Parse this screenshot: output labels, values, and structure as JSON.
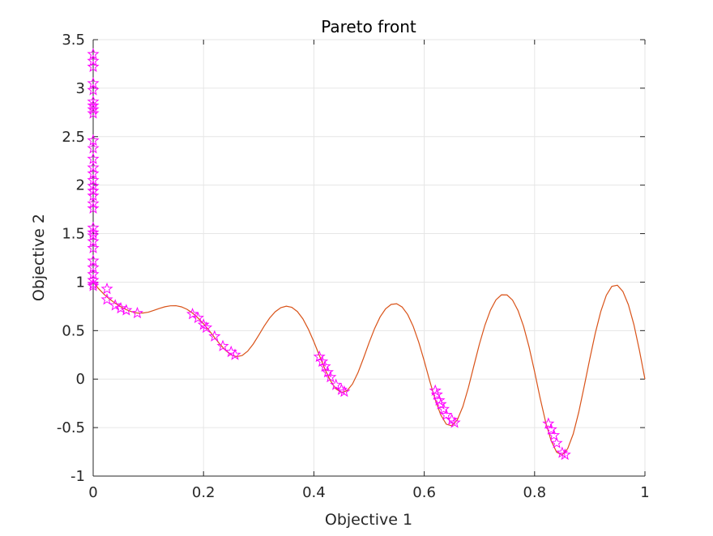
{
  "chart_data": {
    "type": "scatter",
    "title": "Pareto front",
    "xlabel": "Objective 1",
    "ylabel": "Objective 2",
    "xlim": [
      0,
      1
    ],
    "ylim": [
      -1,
      3.5
    ],
    "xticks": [
      "0",
      "0.2",
      "0.4",
      "0.6",
      "0.8",
      "1"
    ],
    "xtick_values": [
      0,
      0.2,
      0.4,
      0.6,
      0.8,
      1
    ],
    "yticks": [
      "-1",
      "-0.5",
      "0",
      "0.5",
      "1",
      "1.5",
      "2",
      "2.5",
      "3",
      "3.5"
    ],
    "ytick_values": [
      -1,
      -0.5,
      0,
      0.5,
      1,
      1.5,
      2,
      2.5,
      3,
      3.5
    ],
    "grid": true,
    "colors": {
      "curve": "#d95319",
      "markers": "#ff00ff",
      "marker_edge": "#7b2fbe",
      "grid": "#e6e6e6",
      "axis": "#262626"
    },
    "series": [
      {
        "type": "line",
        "x": [
          0,
          0.01,
          0.02,
          0.03,
          0.04,
          0.05,
          0.06,
          0.07,
          0.08,
          0.09,
          0.1,
          0.11,
          0.12,
          0.13,
          0.14,
          0.15,
          0.16,
          0.17,
          0.18,
          0.19,
          0.2,
          0.21,
          0.22,
          0.23,
          0.24,
          0.25,
          0.26,
          0.27,
          0.28,
          0.29,
          0.3,
          0.31,
          0.32,
          0.33,
          0.34,
          0.35,
          0.36,
          0.37,
          0.38,
          0.39,
          0.4,
          0.41,
          0.42,
          0.43,
          0.44,
          0.45,
          0.46,
          0.47,
          0.48,
          0.49,
          0.5,
          0.51,
          0.52,
          0.53,
          0.54,
          0.55,
          0.56,
          0.57,
          0.58,
          0.59,
          0.6,
          0.61,
          0.62,
          0.63,
          0.64,
          0.65,
          0.66,
          0.67,
          0.68,
          0.69,
          0.7,
          0.71,
          0.72,
          0.73,
          0.74,
          0.75,
          0.76,
          0.77,
          0.78,
          0.79,
          0.8,
          0.81,
          0.82,
          0.83,
          0.84,
          0.85,
          0.86,
          0.87,
          0.88,
          0.89,
          0.9,
          0.91,
          0.92,
          0.93,
          0.94,
          0.95,
          0.96,
          0.97,
          0.98,
          0.99,
          1.0
        ],
        "y": [
          1.0,
          0.931,
          0.873,
          0.824,
          0.782,
          0.746,
          0.716,
          0.694,
          0.681,
          0.681,
          0.69,
          0.709,
          0.729,
          0.746,
          0.756,
          0.757,
          0.745,
          0.72,
          0.681,
          0.63,
          0.57,
          0.502,
          0.429,
          0.358,
          0.296,
          0.251,
          0.231,
          0.243,
          0.288,
          0.361,
          0.452,
          0.547,
          0.631,
          0.695,
          0.736,
          0.752,
          0.74,
          0.697,
          0.622,
          0.515,
          0.385,
          0.243,
          0.103,
          -0.017,
          -0.101,
          -0.138,
          -0.12,
          -0.05,
          0.068,
          0.217,
          0.375,
          0.521,
          0.641,
          0.725,
          0.77,
          0.777,
          0.743,
          0.666,
          0.544,
          0.381,
          0.187,
          -0.02,
          -0.214,
          -0.37,
          -0.465,
          -0.482,
          -0.42,
          -0.283,
          -0.088,
          0.138,
          0.361,
          0.556,
          0.711,
          0.817,
          0.869,
          0.868,
          0.815,
          0.707,
          0.545,
          0.331,
          0.077,
          -0.194,
          -0.442,
          -0.636,
          -0.754,
          -0.782,
          -0.717,
          -0.566,
          -0.342,
          -0.072,
          0.207,
          0.473,
          0.698,
          0.864,
          0.956,
          0.968,
          0.904,
          0.767,
          0.562,
          0.296,
          0.0
        ]
      },
      {
        "type": "scatter",
        "marker": "star",
        "points": [
          [
            0,
            3.35
          ],
          [
            0,
            3.28
          ],
          [
            0,
            3.22
          ],
          [
            0,
            3.05
          ],
          [
            0,
            2.98
          ],
          [
            0,
            2.86
          ],
          [
            0,
            2.82
          ],
          [
            0,
            2.78
          ],
          [
            0,
            2.74
          ],
          [
            0,
            2.46
          ],
          [
            0,
            2.38
          ],
          [
            0,
            2.27
          ],
          [
            0,
            2.18
          ],
          [
            0,
            2.12
          ],
          [
            0,
            2.05
          ],
          [
            0,
            1.99
          ],
          [
            0,
            1.94
          ],
          [
            0,
            1.89
          ],
          [
            0,
            1.81
          ],
          [
            0,
            1.76
          ],
          [
            0,
            1.56
          ],
          [
            0,
            1.51
          ],
          [
            0,
            1.48
          ],
          [
            0,
            1.42
          ],
          [
            0,
            1.35
          ],
          [
            0,
            1.22
          ],
          [
            0,
            1.15
          ],
          [
            0,
            1.08
          ],
          [
            0,
            1.02
          ],
          [
            0,
            0.98
          ],
          [
            0,
            0.96
          ],
          [
            0.025,
            0.93
          ],
          [
            0.025,
            0.82
          ],
          [
            0.04,
            0.76
          ],
          [
            0.05,
            0.73
          ],
          [
            0.06,
            0.71
          ],
          [
            0.08,
            0.68
          ],
          [
            0.18,
            0.67
          ],
          [
            0.19,
            0.63
          ],
          [
            0.2,
            0.56
          ],
          [
            0.205,
            0.53
          ],
          [
            0.22,
            0.44
          ],
          [
            0.235,
            0.34
          ],
          [
            0.25,
            0.28
          ],
          [
            0.257,
            0.25
          ],
          [
            0.41,
            0.23
          ],
          [
            0.415,
            0.18
          ],
          [
            0.42,
            0.13
          ],
          [
            0.425,
            0.07
          ],
          [
            0.43,
            0.02
          ],
          [
            0.44,
            -0.06
          ],
          [
            0.45,
            -0.11
          ],
          [
            0.455,
            -0.13
          ],
          [
            0.62,
            -0.12
          ],
          [
            0.623,
            -0.16
          ],
          [
            0.627,
            -0.22
          ],
          [
            0.63,
            -0.26
          ],
          [
            0.635,
            -0.31
          ],
          [
            0.64,
            -0.37
          ],
          [
            0.65,
            -0.42
          ],
          [
            0.655,
            -0.45
          ],
          [
            0.825,
            -0.46
          ],
          [
            0.83,
            -0.52
          ],
          [
            0.835,
            -0.58
          ],
          [
            0.84,
            -0.66
          ],
          [
            0.85,
            -0.76
          ],
          [
            0.855,
            -0.78
          ]
        ]
      }
    ]
  }
}
